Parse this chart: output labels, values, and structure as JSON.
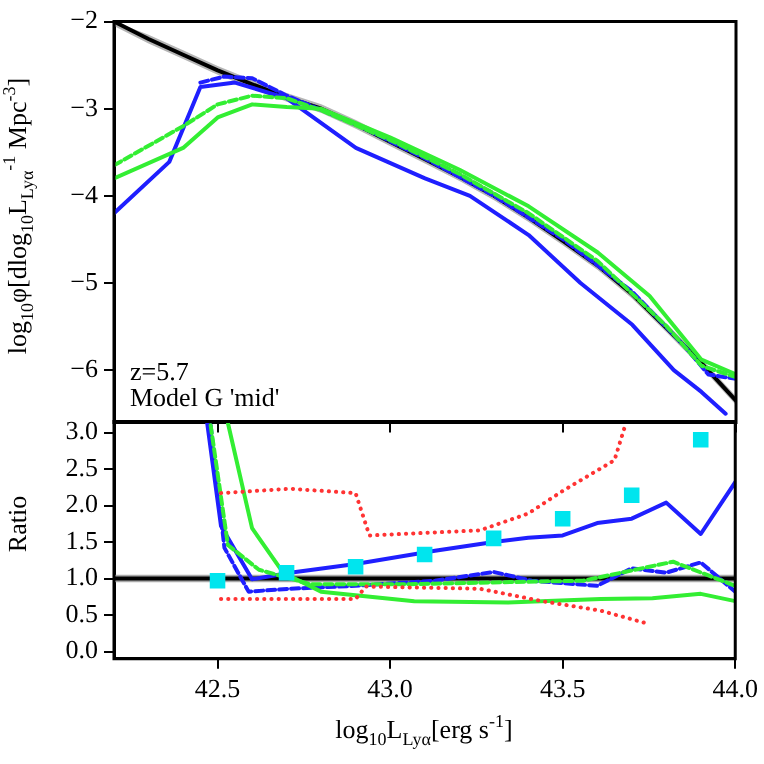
{
  "chart_data": [
    {
      "type": "line",
      "ylabel": "log$_{10}$φ[dlog$_{10}$L$_{Lyα}$$^{-1}$ Mpc$^{-3}$]",
      "xlim": [
        42.2,
        44.0
      ],
      "xticks": [
        {
          "value": 42.5,
          "label": null
        },
        {
          "value": 43.0,
          "label": null
        },
        {
          "value": 43.5,
          "label": null
        },
        {
          "value": 44.0,
          "label": null
        }
      ],
      "ylim": [
        -6.6,
        -2
      ],
      "yticks": [
        {
          "value": -2,
          "label": "−2"
        },
        {
          "value": -3,
          "label": "−3"
        },
        {
          "value": -4,
          "label": "−4"
        },
        {
          "value": -5,
          "label": "−5"
        },
        {
          "value": -6,
          "label": "−6"
        }
      ],
      "tick_labels": "y",
      "grid": false,
      "legend": false,
      "marker": "none",
      "annotations": [
        "z=5.7",
        "Model G 'mid'"
      ],
      "series": [
        {
          "color": "#000000",
          "line_style": "solid",
          "x": [
            42.2,
            42.3,
            42.4,
            42.5,
            42.6,
            42.7,
            42.8,
            42.9,
            43.0,
            43.1,
            43.2,
            43.3,
            43.4,
            43.5,
            43.6,
            43.7,
            43.8,
            43.9,
            44.0
          ],
          "values": [
            -2.0,
            -2.2,
            -2.38,
            -2.56,
            -2.72,
            -2.87,
            -3.0,
            -3.18,
            -3.38,
            -3.58,
            -3.78,
            -4.0,
            -4.25,
            -4.52,
            -4.8,
            -5.13,
            -5.52,
            -5.92,
            -6.35
          ],
          "lower": [
            -2.05,
            -2.25,
            -2.43,
            -2.61,
            -2.77,
            -2.92,
            -3.05,
            -3.23,
            -3.43,
            -3.63,
            -3.83,
            -4.05,
            -4.3,
            -4.57,
            -4.85,
            -5.18,
            -5.57,
            -5.97,
            -6.4
          ],
          "upper": [
            -2.0,
            -2.15,
            -2.33,
            -2.51,
            -2.67,
            -2.82,
            -2.95,
            -3.13,
            -3.33,
            -3.53,
            -3.73,
            -3.95,
            -4.2,
            -4.47,
            -4.75,
            -5.08,
            -5.47,
            -5.87,
            -6.3
          ]
        },
        {
          "type": "line",
          "color": "#1f1fff",
          "line_style": "solid",
          "x": [
            42.2,
            42.36,
            42.45,
            42.55,
            42.7,
            42.9,
            43.1,
            43.23,
            43.4,
            43.55,
            43.7,
            43.82,
            43.9,
            43.97
          ],
          "values": [
            -4.2,
            -3.61,
            -2.75,
            -2.7,
            -2.88,
            -3.45,
            -3.8,
            -4.0,
            -4.45,
            -5.0,
            -5.48,
            -6.0,
            -6.25,
            -6.5
          ]
        },
        {
          "type": "line",
          "color": "#1f1fff",
          "line_style": "dashed",
          "x": [
            42.45,
            42.52,
            42.6,
            42.7,
            42.9,
            43.1,
            43.3,
            43.5,
            43.7,
            43.85,
            43.92,
            44.0
          ],
          "values": [
            -2.7,
            -2.63,
            -2.65,
            -2.85,
            -3.18,
            -3.57,
            -4.0,
            -4.5,
            -5.1,
            -5.72,
            -6.05,
            -6.1
          ]
        },
        {
          "type": "line",
          "color": "#33ee33",
          "line_style": "solid",
          "x": [
            42.2,
            42.4,
            42.5,
            42.6,
            42.7,
            42.8,
            43.0,
            43.2,
            43.4,
            43.6,
            43.75,
            43.9,
            44.0
          ],
          "values": [
            -3.8,
            -3.45,
            -3.1,
            -2.95,
            -2.98,
            -3.0,
            -3.33,
            -3.7,
            -4.12,
            -4.65,
            -5.15,
            -5.88,
            -6.05
          ]
        },
        {
          "type": "line",
          "color": "#33ee33",
          "line_style": "dashed",
          "x": [
            42.2,
            42.4,
            42.5,
            42.6,
            42.7,
            42.8,
            43.0,
            43.2,
            43.4,
            43.6,
            43.8,
            43.9,
            44.0
          ],
          "values": [
            -3.65,
            -3.2,
            -2.95,
            -2.85,
            -2.88,
            -3.02,
            -3.36,
            -3.75,
            -4.2,
            -4.75,
            -5.5,
            -5.95,
            -6.08
          ]
        }
      ]
    },
    {
      "type": "line",
      "xlabel": "log$_{10}$L$_{Lyα}$[erg s$^{-1}$]",
      "ylabel": "Ratio",
      "xlim": [
        42.2,
        44.0
      ],
      "xticks": [
        {
          "value": 42.5,
          "label": "42.5"
        },
        {
          "value": 43.0,
          "label": "43.0"
        },
        {
          "value": 43.5,
          "label": "43.5"
        },
        {
          "value": 44.0,
          "label": "44.0"
        }
      ],
      "ylim": [
        -0.1,
        3.15
      ],
      "yticks": [
        {
          "value": 0,
          "label": "0.0"
        },
        {
          "value": 0.5,
          "label": "0.5"
        },
        {
          "value": 1,
          "label": "1.0"
        },
        {
          "value": 1.5,
          "label": "1.5"
        },
        {
          "value": 2,
          "label": "2.0"
        },
        {
          "value": 2.5,
          "label": "2.5"
        },
        {
          "value": 3,
          "label": "3.0"
        }
      ],
      "grid": false,
      "legend": false,
      "marker": "none",
      "ref_lines": [
        {
          "axis": "y",
          "value": 1,
          "color": "#000000"
        }
      ],
      "bands": [
        {
          "axis": "y",
          "from": 0.95,
          "to": 1.05,
          "color": "#aaaaaa"
        }
      ],
      "series": [
        {
          "type": "line",
          "color": "#1f1fff",
          "line_style": "solid",
          "x": [
            42.47,
            42.51,
            42.6,
            42.71,
            42.9,
            43.13,
            43.3,
            43.4,
            43.5,
            43.6,
            43.7,
            43.8,
            43.9,
            44.0
          ],
          "values": [
            3.13,
            1.72,
            0.99,
            1.08,
            1.2,
            1.38,
            1.5,
            1.56,
            1.59,
            1.76,
            1.82,
            2.04,
            1.61,
            2.32
          ]
        },
        {
          "type": "line",
          "color": "#1f1fff",
          "line_style": "dashed",
          "x": [
            42.48,
            42.52,
            42.59,
            42.71,
            42.9,
            43.13,
            43.3,
            43.41,
            43.6,
            43.7,
            43.8,
            43.9,
            44.0
          ],
          "values": [
            3.1,
            1.42,
            0.82,
            0.86,
            0.9,
            0.97,
            1.09,
            0.97,
            0.9,
            1.14,
            1.08,
            1.22,
            0.82
          ]
        },
        {
          "type": "line",
          "color": "#33ee33",
          "line_style": "solid",
          "x": [
            42.53,
            42.6,
            42.69,
            42.8,
            43.07,
            43.34,
            43.61,
            43.76,
            43.9,
            44.0
          ],
          "values": [
            3.13,
            1.69,
            1.08,
            0.82,
            0.69,
            0.67,
            0.72,
            0.73,
            0.79,
            0.69
          ]
        },
        {
          "color": "#33ee33",
          "line_style": "dashed",
          "x": [
            42.48,
            42.53,
            42.62,
            42.77,
            43.02,
            43.33,
            43.56,
            43.82,
            44.0
          ],
          "values": [
            3.1,
            1.46,
            1.12,
            0.92,
            0.92,
            0.95,
            0.97,
            1.23,
            0.9
          ]
        },
        {
          "type": "line",
          "color": "#ff3333",
          "line_style": "dotted",
          "x": [
            42.51,
            42.71,
            42.9,
            42.94,
            43.26,
            43.4,
            43.5,
            43.65,
            43.68
          ],
          "values": [
            2.17,
            2.23,
            2.17,
            1.59,
            1.66,
            1.89,
            2.2,
            2.62,
            3.08
          ]
        },
        {
          "type": "line",
          "color": "#ff3333",
          "line_style": "dotted",
          "x": [
            42.51,
            42.9,
            42.93,
            43.26,
            43.44,
            43.61,
            43.74
          ],
          "values": [
            0.72,
            0.72,
            0.89,
            0.86,
            0.69,
            0.56,
            0.39
          ]
        },
        {
          "type": "scatter",
          "color": "#00e5ee",
          "marker": "square",
          "x": [
            42.5,
            42.7,
            42.9,
            43.1,
            43.3,
            43.5,
            43.7,
            43.9
          ],
          "values": [
            0.97,
            1.08,
            1.16,
            1.33,
            1.55,
            1.82,
            2.14,
            2.9
          ]
        }
      ]
    }
  ]
}
